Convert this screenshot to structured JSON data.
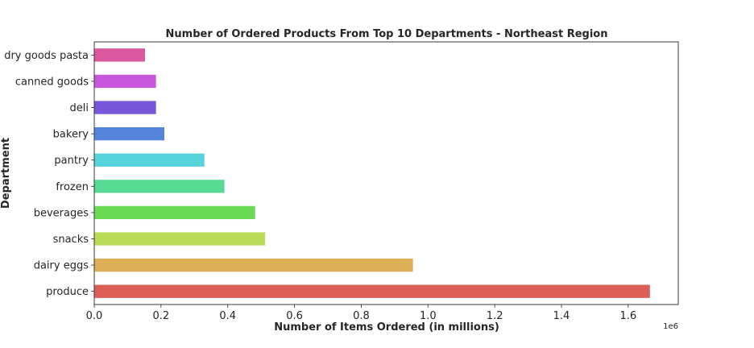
{
  "chart_data": {
    "type": "bar",
    "orientation": "horizontal",
    "title": "Number of Ordered Products From Top 10 Departments - Northeast Region",
    "xlabel": "Number of Items Ordered (in millions)",
    "ylabel": "Department",
    "x_offset_label": "1e6",
    "xlim": [
      0,
      1.75
    ],
    "x_ticks": [
      "0.0",
      "0.2",
      "0.4",
      "0.6",
      "0.8",
      "1.0",
      "1.2",
      "1.4",
      "1.6"
    ],
    "categories": [
      "produce",
      "dairy eggs",
      "snacks",
      "beverages",
      "frozen",
      "pantry",
      "bakery",
      "deli",
      "canned goods",
      "dry goods pasta"
    ],
    "values": [
      1.665,
      0.955,
      0.512,
      0.482,
      0.39,
      0.33,
      0.21,
      0.185,
      0.185,
      0.152
    ],
    "colors": [
      "#db5f57",
      "#dbae57",
      "#b9db57",
      "#69db57",
      "#57db94",
      "#57d3db",
      "#5784db",
      "#7957db",
      "#c957db",
      "#db579e"
    ],
    "grid": false,
    "legend": "none"
  }
}
